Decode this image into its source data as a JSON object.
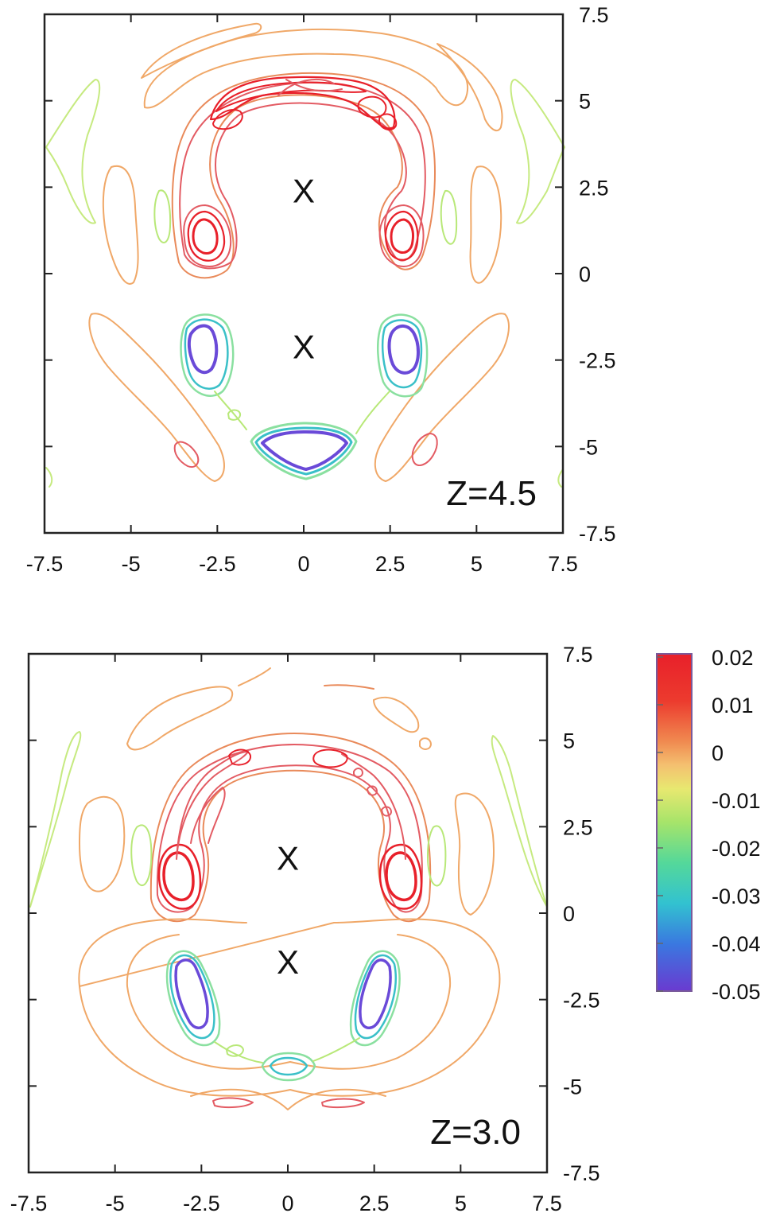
{
  "colors": {
    "pos_high": "#e8202a",
    "pos_mid": "#e04a5a",
    "pos_low": "#e99a5a",
    "zero": "#f0b070",
    "neg_low": "#b8e878",
    "neg_mid": "#6edc9a",
    "neg_high": "#3ac0c8",
    "neg_max": "#6a4ad8"
  },
  "chart_data": [
    {
      "type": "contour",
      "panel_label": "Z=4.5",
      "xlim": [
        -7.5,
        7.5
      ],
      "ylim": [
        -7.5,
        7.5
      ],
      "x_ticks": [
        "-7.5",
        "-5",
        "-2.5",
        "0",
        "2.5",
        "5",
        "7.5"
      ],
      "y_ticks": [
        "7.5",
        "5",
        "2.5",
        "0",
        "-2.5",
        "-5",
        "-7.5"
      ],
      "x_tick_values": [
        -7.5,
        -5,
        -2.5,
        0,
        2.5,
        5,
        7.5
      ],
      "y_tick_values": [
        7.5,
        5,
        2.5,
        0,
        -2.5,
        -5,
        -7.5
      ],
      "markers": [
        {
          "label": "X",
          "x": 0,
          "y": 2.4
        },
        {
          "label": "X",
          "x": 0,
          "y": -2.1
        }
      ],
      "grid": false
    },
    {
      "type": "contour",
      "panel_label": "Z=3.0",
      "xlim": [
        -7.5,
        7.5
      ],
      "ylim": [
        -7.5,
        7.5
      ],
      "x_ticks": [
        "-7.5",
        "-5",
        "-2.5",
        "0",
        "2.5",
        "5",
        "7.5"
      ],
      "y_ticks": [
        "7.5",
        "5",
        "2.5",
        "0",
        "-2.5",
        "-5",
        "-7.5"
      ],
      "x_tick_values": [
        -7.5,
        -5,
        -2.5,
        0,
        2.5,
        5,
        7.5
      ],
      "y_tick_values": [
        7.5,
        5,
        2.5,
        0,
        -2.5,
        -5,
        -7.5
      ],
      "markers": [
        {
          "label": "X",
          "x": 0,
          "y": 1.6
        },
        {
          "label": "X",
          "x": 0,
          "y": -1.4
        }
      ],
      "grid": false
    }
  ],
  "colorbar": {
    "labels": [
      "0.02",
      "0.01",
      "0",
      "-0.01",
      "-0.02",
      "-0.03",
      "-0.04",
      "-0.05"
    ],
    "values": [
      0.02,
      0.01,
      0,
      -0.01,
      -0.02,
      -0.03,
      -0.04,
      -0.05
    ],
    "placement": "right"
  }
}
